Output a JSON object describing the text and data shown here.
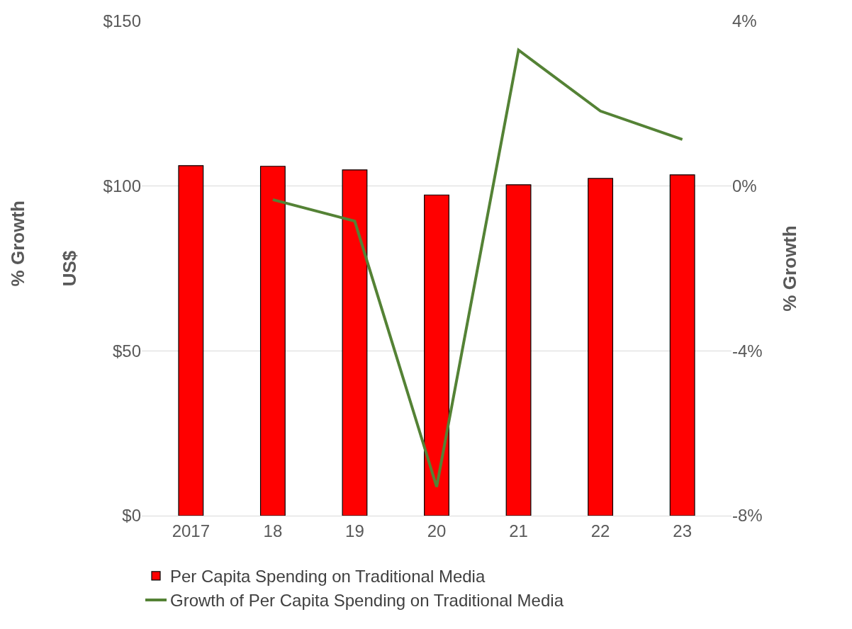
{
  "chart_data": {
    "type": "bar",
    "ylabel": "US$",
    "y2label": "% Growth",
    "annotations": [
      "% Growth"
    ],
    "categories": [
      "2017",
      "18",
      "19",
      "20",
      "21",
      "22",
      "23"
    ],
    "series": [
      {
        "name": "Per Capita Spending on Traditional Media",
        "color": "#ff0000",
        "values": [
          106.2,
          106.0,
          104.9,
          97.3,
          100.4,
          102.3,
          103.4
        ]
      },
      {
        "name": "Growth of Per Capita Spending on Traditional Media",
        "type": "line",
        "axis": "y2",
        "color": "#548235",
        "values": [
          null,
          -0.33,
          -0.85,
          -7.3,
          3.3,
          1.82,
          1.13
        ]
      }
    ],
    "ylim": [
      0,
      150
    ],
    "yticks": [
      {
        "value": 0,
        "label": "$0"
      },
      {
        "value": 50,
        "label": "$50"
      },
      {
        "value": 100,
        "label": "$100"
      },
      {
        "value": 150,
        "label": "$150"
      }
    ],
    "y2lim": [
      -8,
      4
    ],
    "y2ticks": [
      {
        "value": -8,
        "label": "-8%"
      },
      {
        "value": -4,
        "label": "-4%"
      },
      {
        "value": 0,
        "label": "0%"
      },
      {
        "value": 4,
        "label": "4%"
      }
    ],
    "grid": "y",
    "legend": "bottom",
    "marker": "none",
    "line_style": "solid"
  }
}
